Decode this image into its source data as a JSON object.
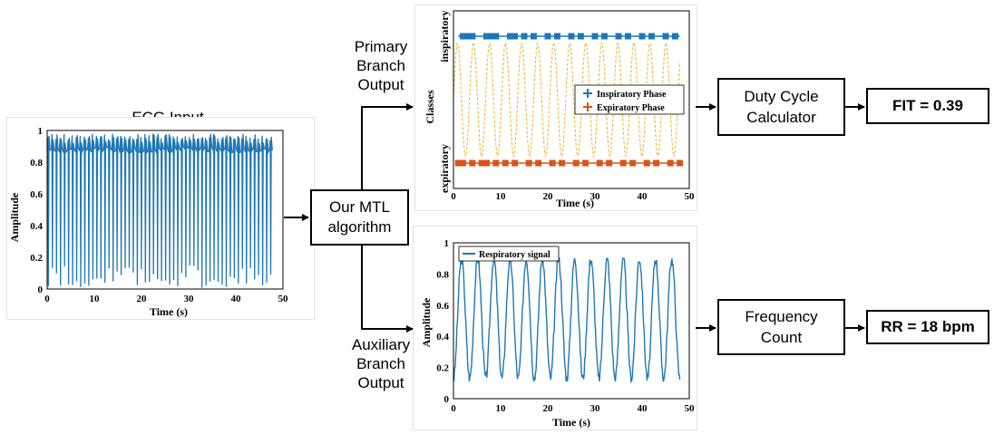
{
  "colors": {
    "blue": "#1f77b4",
    "orange": "#d95319",
    "dashed": "#edb120"
  },
  "ecg": {
    "title": "ECG Input",
    "xlabel": "Time (s)",
    "ylabel": "Amplitude",
    "xticks": [
      "0",
      "10",
      "20",
      "30",
      "40",
      "50"
    ],
    "yticks": [
      "0",
      "0.2",
      "0.4",
      "0.6",
      "0.8",
      "1"
    ]
  },
  "algorithm": {
    "label": "Our MTL\nalgorithm"
  },
  "primary": {
    "label": "Primary\nBranch\nOutput",
    "xlabel": "Time (s)",
    "ylabel": "Classes",
    "ytick_top": "inspiratory",
    "ytick_bottom": "expiratory",
    "xticks": [
      "0",
      "10",
      "20",
      "30",
      "40",
      "50"
    ],
    "legend": [
      "Inspiratory Phase",
      "Expiratory Phase"
    ]
  },
  "auxiliary": {
    "label": "Auxiliary\nBranch\nOutput",
    "xlabel": "Time (s)",
    "ylabel": "Amplitude",
    "xticks": [
      "0",
      "10",
      "20",
      "30",
      "40",
      "50"
    ],
    "yticks": [
      "0",
      "0.2",
      "0.4",
      "0.6",
      "0.8",
      "1"
    ],
    "legend": "Respiratory signal"
  },
  "duty": {
    "label": "Duty Cycle\nCalculator"
  },
  "fit": {
    "label": "FIT = 0.39"
  },
  "freq": {
    "label": "Frequency\nCount"
  },
  "rr": {
    "label": "RR = 18 bpm"
  },
  "chart_data": [
    {
      "type": "line",
      "title": "ECG Input",
      "xlabel": "Time (s)",
      "ylabel": "Amplitude",
      "xlim": [
        0,
        50
      ],
      "ylim": [
        0,
        1
      ],
      "series": [
        {
          "beats": 56,
          "baseline": 0.86,
          "peak": 0.98,
          "trough_min": 0.0,
          "trough_max": 0.15,
          "duration": 48
        }
      ]
    },
    {
      "type": "scatter",
      "xlabel": "Time (s)",
      "ylabel": "Classes",
      "xlim": [
        0,
        50
      ],
      "series": [
        {
          "name": "Inspiratory Phase",
          "level": "inspiratory",
          "x": [
            2,
            3,
            4,
            7,
            8,
            9,
            12,
            13,
            15,
            17,
            20,
            22,
            25,
            27,
            30,
            32,
            35,
            37,
            40,
            42,
            45,
            47
          ]
        },
        {
          "name": "Expiratory Phase",
          "level": "expiratory",
          "x": [
            1,
            2,
            4,
            6,
            7,
            9,
            11,
            13,
            16,
            18,
            21,
            23,
            26,
            28,
            31,
            33,
            36,
            38,
            41,
            43,
            46,
            48
          ]
        }
      ]
    },
    {
      "type": "line",
      "xlabel": "Time (s)",
      "ylabel": "Amplitude",
      "xlim": [
        0,
        50
      ],
      "ylim": [
        0,
        1
      ],
      "series": [
        {
          "name": "Respiratory signal",
          "cycles": 14,
          "min": 0.13,
          "max": 0.9,
          "duration": 48
        }
      ]
    }
  ]
}
